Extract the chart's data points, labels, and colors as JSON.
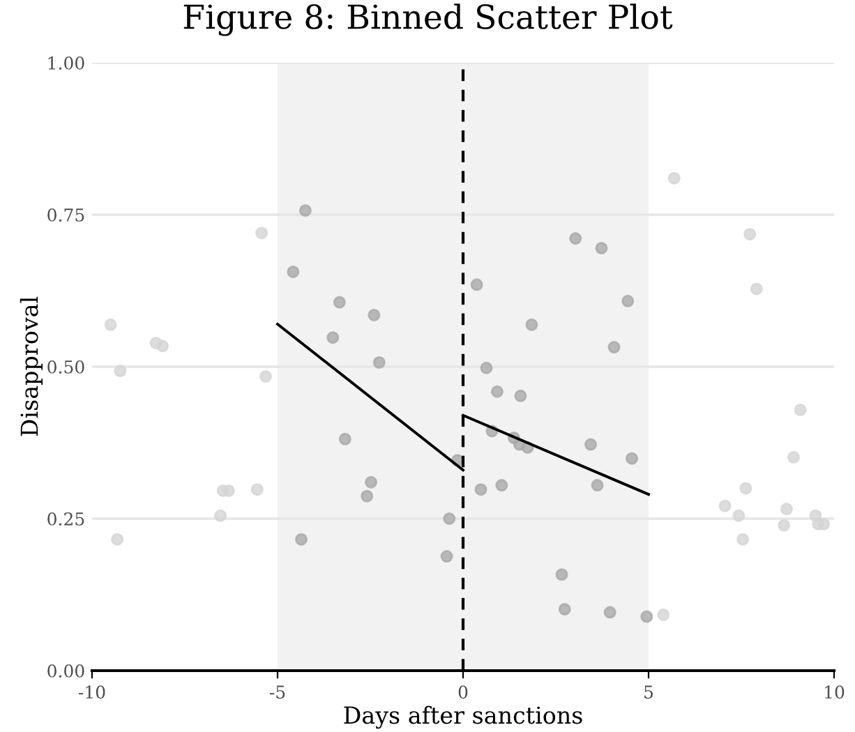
{
  "chart_data": {
    "type": "scatter",
    "title": "Figure 8: Binned Scatter Plot",
    "xlabel": "Days after sanctions",
    "ylabel": "Disapproval",
    "series": [
      {
        "marker": "circle",
        "color": "#d4d4d4",
        "x": [
          -9.5,
          -9.24,
          -9.32,
          -8.28,
          -8.1,
          -5.43,
          -5.32,
          -6.47,
          -6.32,
          -5.55,
          -6.54,
          5.69,
          7.73,
          7.91,
          9.09,
          8.91,
          7.62,
          7.06,
          7.43,
          7.54,
          8.72,
          8.65,
          9.5,
          9.57,
          9.72,
          5.4
        ],
        "values": [
          0.569,
          0.493,
          0.216,
          0.539,
          0.534,
          0.72,
          0.484,
          0.296,
          0.296,
          0.298,
          0.255,
          0.81,
          0.718,
          0.628,
          0.429,
          0.351,
          0.3,
          0.271,
          0.255,
          0.216,
          0.266,
          0.239,
          0.255,
          0.241,
          0.241,
          0.092
        ]
      },
      {
        "marker": "circle",
        "color": "#a9a9a9",
        "x": [
          -4.25,
          -4.58,
          -3.33,
          -2.4,
          -3.51,
          -2.26,
          -3.18,
          -2.48,
          -2.59,
          -4.36,
          -0.37,
          -0.44,
          -0.15,
          0.37,
          3.03,
          3.73,
          4.44,
          1.85,
          4.07,
          0.63,
          0.92,
          1.55,
          0.78,
          1.37,
          1.52,
          1.74,
          3.44,
          4.55,
          0.48,
          1.04,
          3.62,
          2.66,
          2.74,
          3.96,
          4.95
        ],
        "values": [
          0.757,
          0.656,
          0.606,
          0.585,
          0.548,
          0.507,
          0.381,
          0.31,
          0.287,
          0.216,
          0.25,
          0.188,
          0.346,
          0.635,
          0.711,
          0.695,
          0.608,
          0.569,
          0.532,
          0.498,
          0.459,
          0.452,
          0.394,
          0.383,
          0.372,
          0.367,
          0.372,
          0.349,
          0.298,
          0.305,
          0.305,
          0.158,
          0.101,
          0.096,
          0.089
        ]
      },
      {
        "type": "line",
        "color": "#000000",
        "x": [
          -5,
          0
        ],
        "values": [
          0.57,
          0.33
        ]
      },
      {
        "type": "line",
        "color": "#000000",
        "x": [
          0,
          5
        ],
        "values": [
          0.42,
          0.29
        ]
      }
    ],
    "xlim": [
      -10,
      10
    ],
    "xticks": [
      -10,
      -5,
      0,
      5,
      10
    ],
    "ylim": [
      0,
      1
    ],
    "yticks": [
      {
        "value": 0,
        "label": "0.00"
      },
      {
        "value": 0.25,
        "label": "0.25"
      },
      {
        "value": 0.5,
        "label": "0.50"
      },
      {
        "value": 0.75,
        "label": "0.75"
      },
      {
        "value": 1,
        "label": "1.00"
      }
    ],
    "grid": "y",
    "ref_lines": [
      {
        "axis": "x",
        "value": 0,
        "color": "#000000",
        "line_style": "dashed"
      }
    ],
    "bands": [
      {
        "axis": "x",
        "from": -5,
        "to": 5,
        "color": "#f2f2f2"
      }
    ]
  }
}
